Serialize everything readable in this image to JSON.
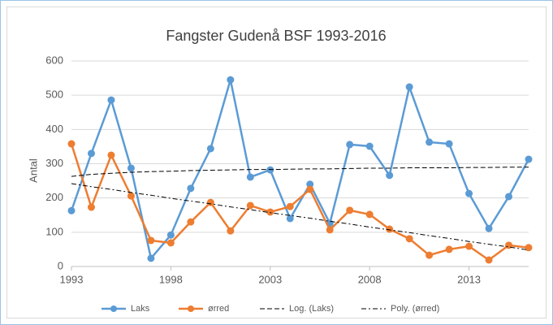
{
  "chart_data": {
    "type": "line",
    "title": "Fangster Gudenå BSF 1993-2016",
    "ylabel": "Antal",
    "x": [
      1993,
      1994,
      1995,
      1996,
      1997,
      1998,
      1999,
      2000,
      2001,
      2002,
      2003,
      2004,
      2005,
      2006,
      2007,
      2008,
      2009,
      2010,
      2011,
      2012,
      2013,
      2014,
      2015,
      2016
    ],
    "series": [
      {
        "name": "Laks",
        "color": "#5b9bd5",
        "markers": true,
        "dash": "none",
        "values": [
          163,
          330,
          486,
          287,
          24,
          92,
          228,
          344,
          545,
          261,
          282,
          140,
          240,
          126,
          356,
          351,
          266,
          524,
          363,
          358,
          213,
          111,
          204,
          313
        ]
      },
      {
        "name": "ørred",
        "color": "#ed7d31",
        "markers": true,
        "dash": "none",
        "values": [
          358,
          173,
          325,
          206,
          76,
          69,
          130,
          187,
          104,
          178,
          159,
          175,
          225,
          107,
          164,
          152,
          109,
          81,
          33,
          50,
          59,
          19,
          62,
          55
        ]
      },
      {
        "name": "Log. (Laks)",
        "color": "#000000",
        "markers": false,
        "dash": "6 3",
        "values": [
          263,
          269,
          272,
          275,
          277,
          278,
          280,
          281,
          282,
          283,
          283,
          284,
          285,
          285,
          286,
          287,
          287,
          288,
          288,
          288,
          289,
          289,
          290,
          290
        ]
      },
      {
        "name": "Poly. (ørred)",
        "color": "#000000",
        "markers": false,
        "dash": "6 3 2 3",
        "values": [
          242,
          233,
          225,
          216,
          208,
          199,
          191,
          183,
          174,
          166,
          157,
          149,
          141,
          132,
          124,
          115,
          107,
          99,
          90,
          82,
          73,
          65,
          57,
          48
        ]
      }
    ],
    "xlim": [
      1993,
      2016
    ],
    "xticks": [
      1993,
      1998,
      2003,
      2008,
      2013
    ],
    "ylim": [
      0,
      600
    ],
    "yticks": [
      0,
      100,
      200,
      300,
      400,
      500,
      600
    ],
    "grid": true,
    "legend": "bottom"
  }
}
